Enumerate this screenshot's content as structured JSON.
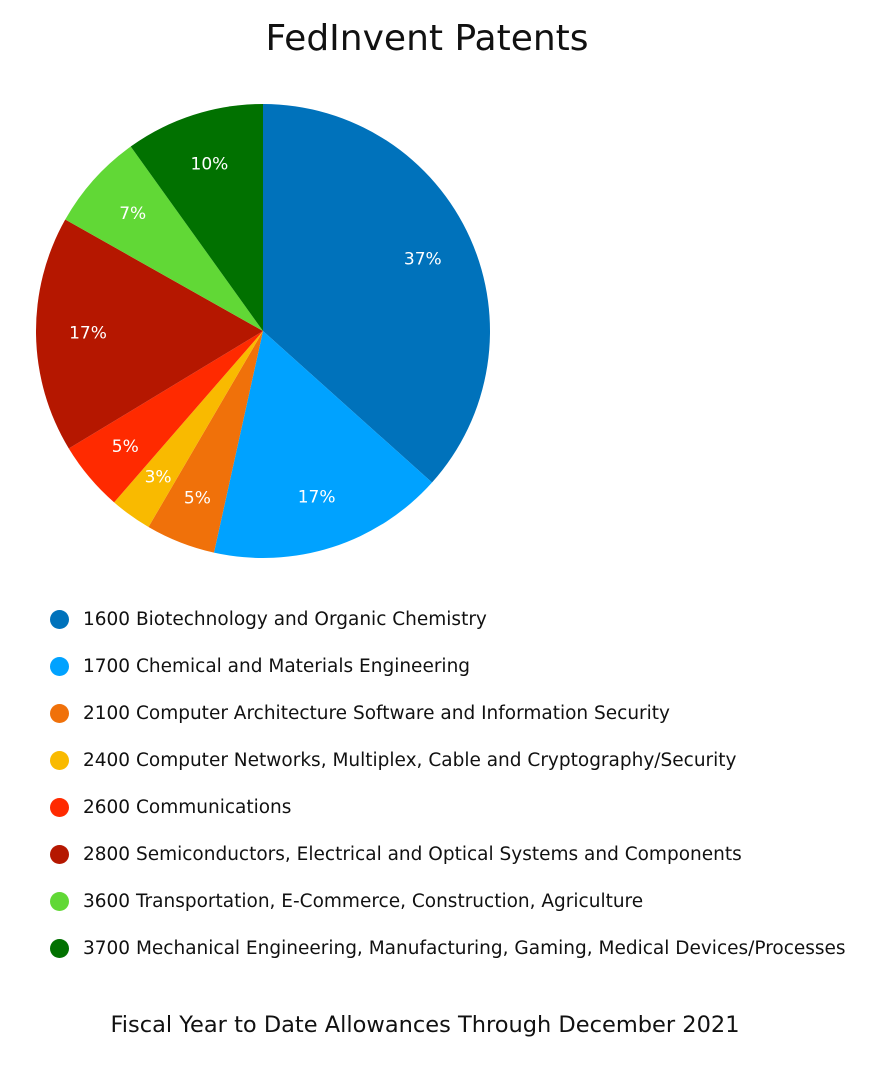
{
  "chart_data": {
    "type": "pie",
    "title": "FedInvent Patents",
    "footnote": "Fiscal Year to Date Allowances Through December 2021",
    "legend_position": "bottom",
    "slices": [
      {
        "label": "1600 Biotechnology and Organic Chemistry",
        "value": 37,
        "display": "37%",
        "color": "#0072BB"
      },
      {
        "label": "1700 Chemical and Materials Engineering",
        "value": 17,
        "display": "17%",
        "color": "#00A2FF"
      },
      {
        "label": "2100 Computer Architecture Software and Information Security",
        "value": 5,
        "display": "5%",
        "color": "#F0710A"
      },
      {
        "label": "2400 Computer Networks, Multiplex, Cable and Cryptography/Security",
        "value": 3,
        "display": "3%",
        "color": "#F9BA00"
      },
      {
        "label": "2600 Communications",
        "value": 5,
        "display": "5%",
        "color": "#FF2A00"
      },
      {
        "label": "2800 Semiconductors, Electrical and Optical Systems and Components",
        "value": 17,
        "display": "17%",
        "color": "#B51700"
      },
      {
        "label": "3600 Transportation, E-Commerce, Construction, Agriculture",
        "value": 7,
        "display": "7%",
        "color": "#61D836"
      },
      {
        "label": "3700 Mechanical Engineering, Manufacturing, Gaming, Medical Devices/Processes",
        "value": 10,
        "display": "10%",
        "color": "#017100"
      }
    ]
  }
}
